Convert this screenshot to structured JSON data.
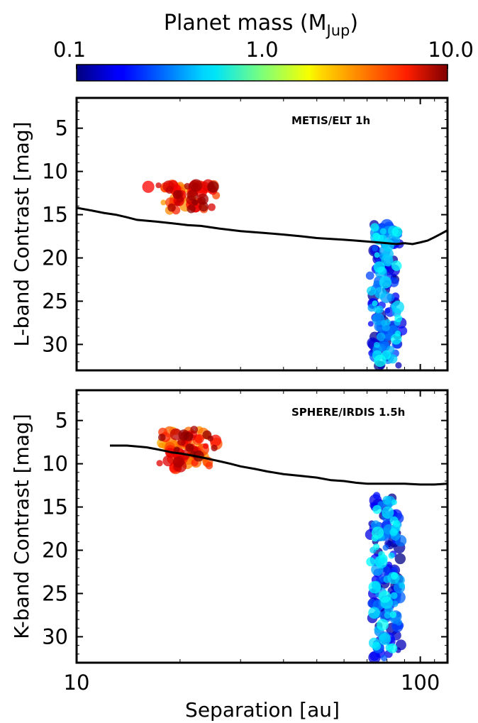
{
  "chart_data": {
    "type": "scatter",
    "colorbar": {
      "title": "Planet mass (M",
      "title_sub": "Jup",
      "title_close": ")",
      "scale": "log",
      "range": [
        0.1,
        10.0
      ],
      "ticks": [
        {
          "value": 0.1,
          "label": "0.1"
        },
        {
          "value": 1.0,
          "label": "1.0"
        },
        {
          "value": 10.0,
          "label": "10.0"
        }
      ],
      "colormap": "jet",
      "placement": "top"
    },
    "shared_x": {
      "label": "Separation [au]",
      "scale": "log",
      "range": [
        10,
        120
      ],
      "ticks": [
        {
          "value": 10,
          "label": "10"
        },
        {
          "value": 100,
          "label": "100"
        }
      ]
    },
    "panels": [
      {
        "label": "METIS/ELT 1h",
        "label_placement": "top-right",
        "ylabel": "L-band Contrast [mag]",
        "y_inverted": true,
        "ylim": [
          1.5,
          33
        ],
        "yticks": [
          {
            "value": 5,
            "label": "5"
          },
          {
            "value": 10,
            "label": "10"
          },
          {
            "value": 15,
            "label": "15"
          },
          {
            "value": 20,
            "label": "20"
          },
          {
            "value": 25,
            "label": "25"
          },
          {
            "value": 30,
            "label": "30"
          }
        ],
        "contrast_curve": [
          [
            10,
            14.2
          ],
          [
            11,
            14.5
          ],
          [
            12,
            14.8
          ],
          [
            13,
            15.0
          ],
          [
            14,
            15.3
          ],
          [
            15,
            15.6
          ],
          [
            17,
            15.8
          ],
          [
            19,
            16.0
          ],
          [
            21,
            16.2
          ],
          [
            23,
            16.3
          ],
          [
            26,
            16.6
          ],
          [
            30,
            16.9
          ],
          [
            35,
            17.1
          ],
          [
            40,
            17.3
          ],
          [
            45,
            17.5
          ],
          [
            50,
            17.7
          ],
          [
            55,
            17.8
          ],
          [
            60,
            17.9
          ],
          [
            65,
            18.0
          ],
          [
            70,
            18.1
          ],
          [
            75,
            18.2
          ],
          [
            80,
            18.3
          ],
          [
            85,
            18.4
          ],
          [
            90,
            18.3
          ],
          [
            95,
            18.4
          ],
          [
            100,
            18.2
          ],
          [
            105,
            18.0
          ],
          [
            110,
            17.6
          ],
          [
            115,
            17.2
          ],
          [
            120,
            16.8
          ]
        ],
        "groups": [
          {
            "name": "inner",
            "x_range": [
              16,
              27
            ],
            "y_range": [
              11.5,
              14.5
            ],
            "mass_range": [
              2.5,
              10
            ],
            "count": 70,
            "seed": 11
          },
          {
            "name": "outer",
            "x_range": [
              76,
              83
            ],
            "y_range": [
              16,
              32.5
            ],
            "mass_range": [
              0.1,
              0.6
            ],
            "count": 150,
            "seed": 23
          }
        ]
      },
      {
        "label": "SPHERE/IRDIS 1.5h",
        "label_placement": "top-right",
        "ylabel": "K-band Contrast [mag]",
        "y_inverted": true,
        "ylim": [
          1.5,
          33
        ],
        "yticks": [
          {
            "value": 5,
            "label": "5"
          },
          {
            "value": 10,
            "label": "10"
          },
          {
            "value": 15,
            "label": "15"
          },
          {
            "value": 20,
            "label": "20"
          },
          {
            "value": 25,
            "label": "25"
          },
          {
            "value": 30,
            "label": "30"
          }
        ],
        "contrast_curve": [
          [
            12.5,
            7.9
          ],
          [
            14,
            7.9
          ],
          [
            15,
            8.0
          ],
          [
            16,
            8.1
          ],
          [
            17,
            8.3
          ],
          [
            18,
            8.5
          ],
          [
            19,
            8.7
          ],
          [
            20,
            8.8
          ],
          [
            22,
            9.1
          ],
          [
            24,
            9.4
          ],
          [
            26,
            9.7
          ],
          [
            28,
            10.0
          ],
          [
            30,
            10.3
          ],
          [
            33,
            10.6
          ],
          [
            36,
            10.9
          ],
          [
            40,
            11.2
          ],
          [
            45,
            11.4
          ],
          [
            50,
            11.6
          ],
          [
            55,
            11.9
          ],
          [
            60,
            12.0
          ],
          [
            65,
            12.2
          ],
          [
            70,
            12.3
          ],
          [
            75,
            12.3
          ],
          [
            80,
            12.3
          ],
          [
            85,
            12.3
          ],
          [
            90,
            12.3
          ],
          [
            100,
            12.4
          ],
          [
            110,
            12.4
          ],
          [
            120,
            12.3
          ]
        ],
        "groups": [
          {
            "name": "inner",
            "x_range": [
              16,
              27
            ],
            "y_range": [
              6,
              10.5
            ],
            "mass_range": [
              2.5,
              10
            ],
            "count": 90,
            "seed": 37
          },
          {
            "name": "outer",
            "x_range": [
              76,
              83
            ],
            "y_range": [
              13.5,
              32.5
            ],
            "mass_range": [
              0.1,
              0.6
            ],
            "count": 170,
            "seed": 41
          }
        ]
      }
    ]
  }
}
